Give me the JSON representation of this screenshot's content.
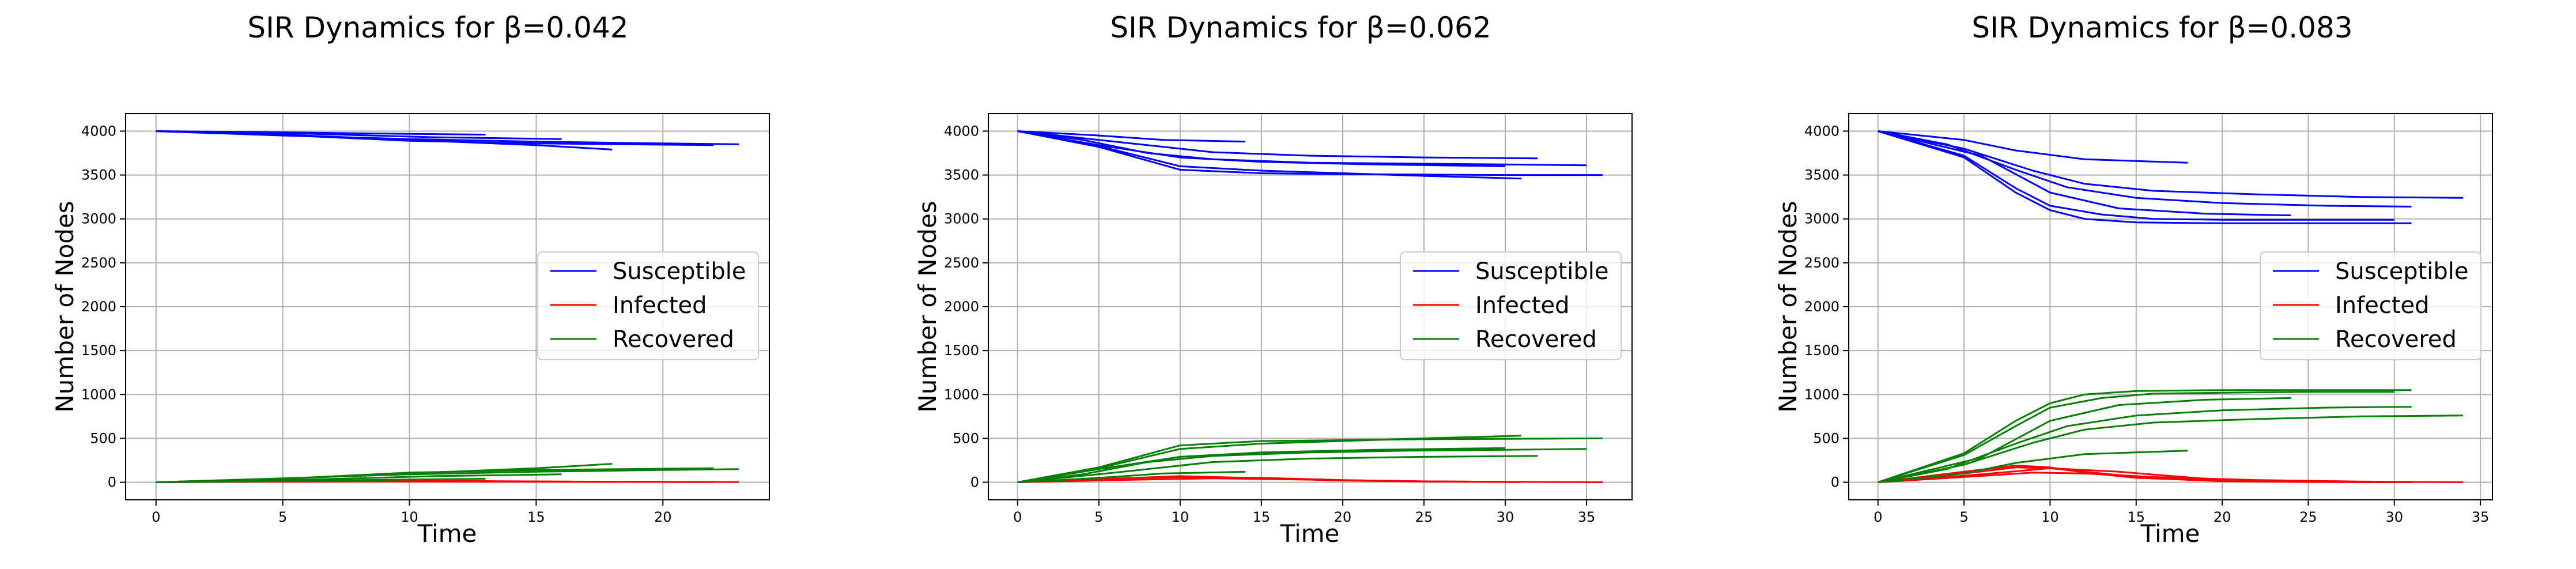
{
  "chart_data": [
    {
      "type": "line",
      "title": "SIR Dynamics for β=0.042",
      "xlabel": "Time",
      "ylabel": "Number of Nodes",
      "xlim": [
        -1.2,
        24.2
      ],
      "ylim": [
        -200,
        4200
      ],
      "x_ticks": [
        0,
        5,
        10,
        15,
        20
      ],
      "y_ticks": [
        0,
        500,
        1000,
        1500,
        2000,
        2500,
        3000,
        3500,
        4000
      ],
      "grid": true,
      "legend": {
        "placement": "center-right",
        "entries": [
          "Susceptible",
          "Infected",
          "Recovered"
        ]
      },
      "series": [
        {
          "name": "Susceptible",
          "color": "#0000ff",
          "values_by_run": [
            {
              "x": [
                0,
                5,
                10,
                15,
                18
              ],
              "y": [
                4000,
                3960,
                3900,
                3840,
                3790
              ]
            },
            {
              "x": [
                0,
                5,
                10,
                15,
                20,
                23
              ],
              "y": [
                4000,
                3950,
                3910,
                3880,
                3860,
                3850
              ]
            },
            {
              "x": [
                0,
                5,
                10,
                15,
                22
              ],
              "y": [
                4000,
                3955,
                3890,
                3860,
                3840
              ]
            },
            {
              "x": [
                0,
                6,
                11,
                16
              ],
              "y": [
                4000,
                3970,
                3930,
                3910
              ]
            },
            {
              "x": [
                0,
                4,
                8,
                13
              ],
              "y": [
                4000,
                3990,
                3975,
                3960
              ]
            }
          ]
        },
        {
          "name": "Infected",
          "color": "#ff0000",
          "values_by_run": [
            {
              "x": [
                0,
                5,
                10,
                15,
                23
              ],
              "y": [
                0,
                8,
                12,
                8,
                3
              ]
            },
            {
              "x": [
                0,
                6,
                12,
                18
              ],
              "y": [
                0,
                10,
                15,
                5
              ]
            },
            {
              "x": [
                0,
                4,
                9,
                14,
                22
              ],
              "y": [
                0,
                6,
                9,
                6,
                2
              ]
            }
          ]
        },
        {
          "name": "Recovered",
          "color": "#008000",
          "values_by_run": [
            {
              "x": [
                0,
                5,
                10,
                15,
                18
              ],
              "y": [
                0,
                40,
                100,
                160,
                210
              ]
            },
            {
              "x": [
                0,
                5,
                10,
                15,
                20,
                23
              ],
              "y": [
                0,
                45,
                90,
                120,
                140,
                150
              ]
            },
            {
              "x": [
                0,
                5,
                10,
                15,
                22
              ],
              "y": [
                0,
                40,
                110,
                140,
                160
              ]
            },
            {
              "x": [
                0,
                6,
                11,
                16
              ],
              "y": [
                0,
                30,
                70,
                90
              ]
            },
            {
              "x": [
                0,
                4,
                8,
                13
              ],
              "y": [
                0,
                10,
                25,
                40
              ]
            }
          ]
        }
      ]
    },
    {
      "type": "line",
      "title": "SIR Dynamics for β=0.062",
      "xlabel": "Time",
      "ylabel": "Number of Nodes",
      "xlim": [
        -1.8,
        37.8
      ],
      "ylim": [
        -200,
        4200
      ],
      "x_ticks": [
        0,
        5,
        10,
        15,
        20,
        25,
        30,
        35
      ],
      "y_ticks": [
        0,
        500,
        1000,
        1500,
        2000,
        2500,
        3000,
        3500,
        4000
      ],
      "grid": true,
      "legend": {
        "placement": "center-right",
        "entries": [
          "Susceptible",
          "Infected",
          "Recovered"
        ]
      },
      "series": [
        {
          "name": "Susceptible",
          "color": "#0000ff",
          "values_by_run": [
            {
              "x": [
                0,
                5,
                10,
                15,
                20,
                25,
                30,
                36
              ],
              "y": [
                4000,
                3820,
                3560,
                3520,
                3510,
                3505,
                3500,
                3500
              ]
            },
            {
              "x": [
                0,
                5,
                10,
                15,
                20,
                25,
                31
              ],
              "y": [
                4000,
                3830,
                3600,
                3550,
                3520,
                3490,
                3460
              ]
            },
            {
              "x": [
                0,
                4,
                8,
                12,
                18,
                24,
                30,
                35
              ],
              "y": [
                4000,
                3900,
                3750,
                3680,
                3640,
                3630,
                3620,
                3610
              ]
            },
            {
              "x": [
                0,
                5,
                10,
                15,
                22,
                30
              ],
              "y": [
                4000,
                3840,
                3700,
                3650,
                3620,
                3600
              ]
            },
            {
              "x": [
                0,
                6,
                12,
                18,
                25,
                32
              ],
              "y": [
                4000,
                3880,
                3760,
                3720,
                3700,
                3690
              ]
            },
            {
              "x": [
                0,
                5,
                9,
                14
              ],
              "y": [
                4000,
                3950,
                3900,
                3880
              ]
            }
          ]
        },
        {
          "name": "Infected",
          "color": "#ff0000",
          "values_by_run": [
            {
              "x": [
                0,
                5,
                10,
                15,
                20,
                25,
                30,
                36
              ],
              "y": [
                0,
                40,
                60,
                50,
                25,
                10,
                5,
                0
              ]
            },
            {
              "x": [
                0,
                5,
                10,
                15,
                20,
                25,
                31
              ],
              "y": [
                0,
                35,
                70,
                45,
                20,
                8,
                2
              ]
            },
            {
              "x": [
                0,
                6,
                12,
                18,
                24,
                30
              ],
              "y": [
                0,
                25,
                45,
                30,
                12,
                4
              ]
            }
          ]
        },
        {
          "name": "Recovered",
          "color": "#008000",
          "values_by_run": [
            {
              "x": [
                0,
                5,
                10,
                15,
                20,
                25,
                30,
                36
              ],
              "y": [
                0,
                170,
                420,
                470,
                480,
                490,
                495,
                500
              ]
            },
            {
              "x": [
                0,
                5,
                10,
                15,
                20,
                25,
                31
              ],
              "y": [
                0,
                160,
                380,
                440,
                470,
                500,
                530
              ]
            },
            {
              "x": [
                0,
                4,
                8,
                12,
                18,
                24,
                30,
                35
              ],
              "y": [
                0,
                90,
                230,
                300,
                340,
                360,
                370,
                380
              ]
            },
            {
              "x": [
                0,
                5,
                10,
                15,
                22,
                30
              ],
              "y": [
                0,
                150,
                290,
                340,
                370,
                390
              ]
            },
            {
              "x": [
                0,
                6,
                12,
                18,
                25,
                32
              ],
              "y": [
                0,
                110,
                230,
                270,
                290,
                300
              ]
            },
            {
              "x": [
                0,
                5,
                9,
                14
              ],
              "y": [
                0,
                50,
                100,
                120
              ]
            }
          ]
        }
      ]
    },
    {
      "type": "line",
      "title": "SIR Dynamics for β=0.083",
      "xlabel": "Time",
      "ylabel": "Number of Nodes",
      "xlim": [
        -1.7,
        35.7
      ],
      "ylim": [
        -200,
        4200
      ],
      "x_ticks": [
        0,
        5,
        10,
        15,
        20,
        25,
        30,
        35
      ],
      "y_ticks": [
        0,
        500,
        1000,
        1500,
        2000,
        2500,
        3000,
        3500,
        4000
      ],
      "grid": true,
      "legend": {
        "placement": "center-right",
        "entries": [
          "Susceptible",
          "Infected",
          "Recovered"
        ]
      },
      "series": [
        {
          "name": "Susceptible",
          "color": "#0000ff",
          "values_by_run": [
            {
              "x": [
                0,
                5,
                8,
                10,
                12,
                15,
                20,
                25,
                31
              ],
              "y": [
                4000,
                3700,
                3300,
                3100,
                3000,
                2960,
                2950,
                2950,
                2950
              ]
            },
            {
              "x": [
                0,
                5,
                8,
                10,
                13,
                16,
                20,
                25,
                30
              ],
              "y": [
                4000,
                3720,
                3350,
                3150,
                3050,
                3000,
                2990,
                2990,
                2990
              ]
            },
            {
              "x": [
                0,
                5,
                9,
                12,
                16,
                22,
                28,
                34
              ],
              "y": [
                4000,
                3800,
                3550,
                3400,
                3320,
                3280,
                3250,
                3240
              ]
            },
            {
              "x": [
                0,
                4,
                8,
                11,
                15,
                20,
                26,
                31
              ],
              "y": [
                4000,
                3850,
                3560,
                3360,
                3240,
                3180,
                3150,
                3140
              ]
            },
            {
              "x": [
                0,
                6,
                10,
                14,
                19,
                24
              ],
              "y": [
                4000,
                3720,
                3300,
                3120,
                3060,
                3040
              ]
            },
            {
              "x": [
                0,
                5,
                8,
                12,
                18
              ],
              "y": [
                4000,
                3900,
                3780,
                3680,
                3640
              ]
            }
          ]
        },
        {
          "name": "Infected",
          "color": "#ff0000",
          "values_by_run": [
            {
              "x": [
                0,
                5,
                8,
                10,
                12,
                15,
                20,
                25,
                31
              ],
              "y": [
                0,
                120,
                190,
                170,
                110,
                50,
                15,
                5,
                0
              ]
            },
            {
              "x": [
                0,
                5,
                8,
                10,
                13,
                16,
                20,
                25,
                30
              ],
              "y": [
                0,
                100,
                170,
                160,
                100,
                45,
                12,
                3,
                0
              ]
            },
            {
              "x": [
                0,
                5,
                9,
                12,
                16,
                22,
                28,
                34
              ],
              "y": [
                0,
                60,
                110,
                100,
                60,
                25,
                8,
                0
              ]
            },
            {
              "x": [
                0,
                6,
                10,
                14,
                19,
                24
              ],
              "y": [
                0,
                90,
                160,
                120,
                40,
                8
              ]
            }
          ]
        },
        {
          "name": "Recovered",
          "color": "#008000",
          "values_by_run": [
            {
              "x": [
                0,
                5,
                8,
                10,
                12,
                15,
                20,
                25,
                31
              ],
              "y": [
                0,
                330,
                700,
                900,
                1000,
                1040,
                1050,
                1050,
                1050
              ]
            },
            {
              "x": [
                0,
                5,
                8,
                10,
                13,
                16,
                20,
                25,
                30
              ],
              "y": [
                0,
                310,
                640,
                850,
                960,
                1010,
                1020,
                1030,
                1030
              ]
            },
            {
              "x": [
                0,
                5,
                9,
                12,
                16,
                22,
                28,
                34
              ],
              "y": [
                0,
                200,
                450,
                600,
                680,
                720,
                750,
                760
              ]
            },
            {
              "x": [
                0,
                4,
                8,
                11,
                15,
                20,
                26,
                31
              ],
              "y": [
                0,
                150,
                440,
                640,
                760,
                820,
                850,
                860
              ]
            },
            {
              "x": [
                0,
                6,
                10,
                14,
                19,
                24
              ],
              "y": [
                0,
                280,
                700,
                880,
                940,
                960
              ]
            },
            {
              "x": [
                0,
                5,
                8,
                12,
                18
              ],
              "y": [
                0,
                100,
                220,
                320,
                360
              ]
            }
          ]
        }
      ]
    }
  ]
}
